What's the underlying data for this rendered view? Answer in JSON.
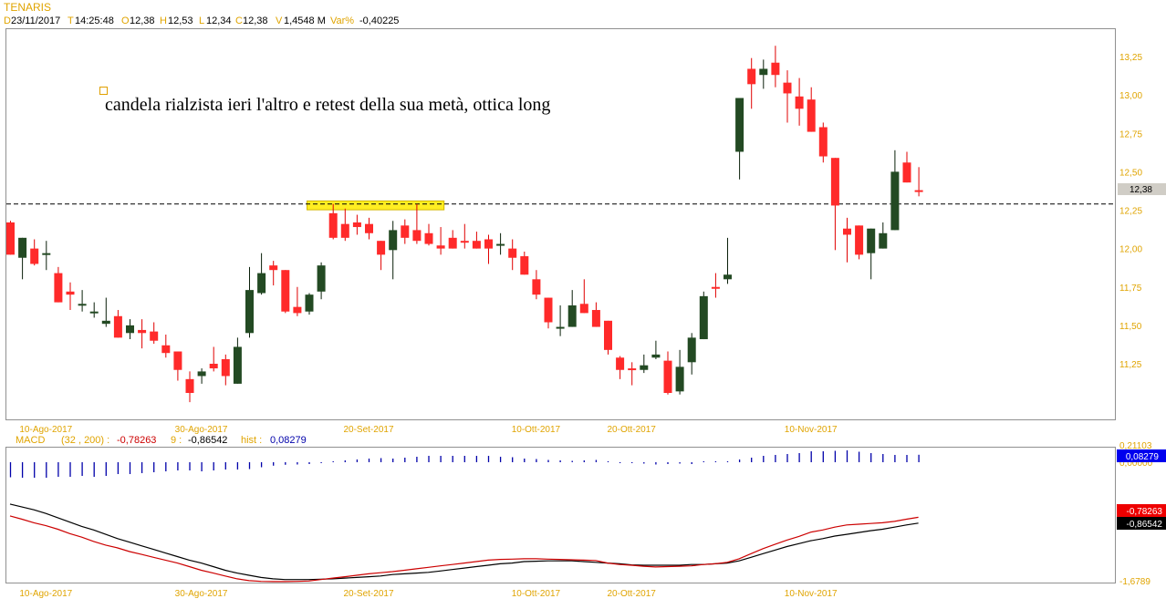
{
  "header": {
    "instrument": "TENARIS",
    "fields": [
      {
        "key": "D",
        "value": "23/11/2017"
      },
      {
        "key": "T",
        "value": "14:25:48"
      },
      {
        "key": "O",
        "value": "12,38"
      },
      {
        "key": "H",
        "value": "12,53"
      },
      {
        "key": "L",
        "value": "12,34"
      },
      {
        "key": "C",
        "value": "12,38"
      },
      {
        "key": "V",
        "value": "1,4548 M"
      },
      {
        "key": "Var%",
        "value": "-0,40225"
      }
    ]
  },
  "annotation": {
    "text": "candela rialzista ieri l'altro e retest della sua metà, ottica long"
  },
  "colors": {
    "up": "#234a23",
    "down": "#ff2a2a",
    "axis_label": "#e0a400",
    "highlight": "#ffee22",
    "macd": "#cc0000",
    "signal": "#000000",
    "hist": "#0000aa"
  },
  "chart_data": {
    "type": "candlestick",
    "title": "TENARIS",
    "price_axis": {
      "ticks": [
        {
          "value": 13.25,
          "label": "13,25"
        },
        {
          "value": 13.0,
          "label": "13,00"
        },
        {
          "value": 12.75,
          "label": "12,75"
        },
        {
          "value": 12.5,
          "label": "12,50"
        },
        {
          "value": 12.25,
          "label": "12,25"
        },
        {
          "value": 12.0,
          "label": "12,00"
        },
        {
          "value": 11.75,
          "label": "11,75"
        },
        {
          "value": 11.5,
          "label": "11,50"
        },
        {
          "value": 11.25,
          "label": "11,25"
        }
      ],
      "last_price_label": "12,38"
    },
    "x_labels": [
      {
        "label": "10-Ago-2017",
        "candle": 3
      },
      {
        "label": "30-Ago-2017",
        "candle": 16
      },
      {
        "label": "20-Set-2017",
        "candle": 30
      },
      {
        "label": "10-Ott-2017",
        "candle": 44
      },
      {
        "label": "20-Ott-2017",
        "candle": 52
      },
      {
        "label": "10-Nov-2017",
        "candle": 67
      }
    ],
    "reference_line": 12.29,
    "highlight_zone": {
      "from_candle": 25,
      "to_candle": 37,
      "price_low": 12.27,
      "price_high": 12.31
    },
    "candles_ohlc": [
      [
        12.17,
        12.18,
        11.96,
        11.96
      ],
      [
        11.94,
        12.07,
        11.8,
        12.07
      ],
      [
        12.0,
        12.06,
        11.89,
        11.9
      ],
      [
        11.96,
        12.05,
        11.86,
        11.97
      ],
      [
        11.84,
        11.88,
        11.65,
        11.65
      ],
      [
        11.72,
        11.78,
        11.6,
        11.7
      ],
      [
        11.63,
        11.73,
        11.59,
        11.64
      ],
      [
        11.58,
        11.65,
        11.55,
        11.59
      ],
      [
        11.51,
        11.68,
        11.49,
        11.53
      ],
      [
        11.56,
        11.6,
        11.42,
        11.42
      ],
      [
        11.45,
        11.54,
        11.41,
        11.5
      ],
      [
        11.47,
        11.54,
        11.35,
        11.45
      ],
      [
        11.46,
        11.52,
        11.38,
        11.4
      ],
      [
        11.37,
        11.44,
        11.29,
        11.32
      ],
      [
        11.33,
        11.33,
        11.14,
        11.21
      ],
      [
        11.15,
        11.2,
        11.0,
        11.06
      ],
      [
        11.17,
        11.22,
        11.12,
        11.2
      ],
      [
        11.25,
        11.36,
        11.2,
        11.22
      ],
      [
        11.28,
        11.31,
        11.11,
        11.17
      ],
      [
        11.12,
        11.42,
        11.12,
        11.36
      ],
      [
        11.45,
        11.88,
        11.42,
        11.73
      ],
      [
        11.71,
        11.97,
        11.7,
        11.84
      ],
      [
        11.89,
        11.92,
        11.76,
        11.86
      ],
      [
        11.86,
        11.86,
        11.58,
        11.59
      ],
      [
        11.62,
        11.75,
        11.56,
        11.58
      ],
      [
        11.59,
        11.71,
        11.57,
        11.7
      ],
      [
        11.72,
        11.91,
        11.67,
        11.89
      ],
      [
        12.23,
        12.29,
        12.06,
        12.07
      ],
      [
        12.16,
        12.26,
        12.05,
        12.07
      ],
      [
        12.17,
        12.22,
        12.09,
        12.14
      ],
      [
        12.16,
        12.2,
        12.06,
        12.1
      ],
      [
        12.05,
        12.05,
        11.86,
        11.96
      ],
      [
        11.99,
        12.18,
        11.8,
        12.12
      ],
      [
        12.15,
        12.19,
        12.03,
        12.07
      ],
      [
        12.12,
        12.29,
        12.03,
        12.05
      ],
      [
        12.1,
        12.16,
        12.02,
        12.03
      ],
      [
        12.02,
        12.14,
        11.96,
        12.0
      ],
      [
        12.07,
        12.12,
        12.0,
        12.0
      ],
      [
        12.05,
        12.16,
        12.0,
        12.04
      ],
      [
        12.05,
        12.11,
        12.0,
        12.0
      ],
      [
        12.06,
        12.09,
        11.9,
        12.0
      ],
      [
        12.02,
        12.1,
        11.96,
        12.03
      ],
      [
        12.0,
        12.06,
        11.86,
        11.94
      ],
      [
        11.95,
        11.98,
        11.83,
        11.83
      ],
      [
        11.8,
        11.86,
        11.67,
        11.7
      ],
      [
        11.68,
        11.68,
        11.48,
        11.52
      ],
      [
        11.48,
        11.63,
        11.43,
        11.49
      ],
      [
        11.49,
        11.73,
        11.49,
        11.63
      ],
      [
        11.64,
        11.8,
        11.58,
        11.58
      ],
      [
        11.6,
        11.65,
        11.49,
        11.49
      ],
      [
        11.53,
        11.53,
        11.31,
        11.34
      ],
      [
        11.29,
        11.3,
        11.15,
        11.21
      ],
      [
        11.22,
        11.26,
        11.11,
        11.21
      ],
      [
        11.21,
        11.31,
        11.19,
        11.24
      ],
      [
        11.29,
        11.4,
        11.28,
        11.31
      ],
      [
        11.27,
        11.33,
        11.05,
        11.06
      ],
      [
        11.07,
        11.34,
        11.05,
        11.23
      ],
      [
        11.26,
        11.45,
        11.18,
        11.42
      ],
      [
        11.41,
        11.72,
        11.41,
        11.69
      ],
      [
        11.75,
        11.84,
        11.68,
        11.74
      ],
      [
        11.8,
        12.07,
        11.77,
        11.83
      ],
      [
        12.63,
        12.98,
        12.45,
        12.98
      ],
      [
        13.17,
        13.24,
        12.91,
        13.07
      ],
      [
        13.13,
        13.23,
        13.04,
        13.17
      ],
      [
        13.21,
        13.32,
        13.05,
        13.13
      ],
      [
        13.08,
        13.16,
        12.82,
        13.01
      ],
      [
        12.99,
        13.11,
        12.8,
        12.91
      ],
      [
        12.97,
        13.05,
        12.76,
        12.76
      ],
      [
        12.79,
        12.82,
        12.56,
        12.6
      ],
      [
        12.59,
        12.59,
        11.99,
        12.28
      ],
      [
        12.13,
        12.2,
        11.91,
        12.09
      ],
      [
        12.15,
        12.15,
        11.93,
        11.96
      ],
      [
        11.97,
        12.13,
        11.8,
        12.13
      ],
      [
        12.0,
        12.17,
        12.0,
        12.1
      ],
      [
        12.12,
        12.64,
        12.12,
        12.5
      ],
      [
        12.56,
        12.63,
        12.43,
        12.43
      ],
      [
        12.38,
        12.53,
        12.34,
        12.38
      ]
    ],
    "macd_panel": {
      "name": "MACD",
      "params": "(32 , 200) :",
      "macd_value": "-0,78263",
      "signal_label": "9 :",
      "signal_value": "-0,86542",
      "hist_label": "hist :",
      "hist_value": "0,08279",
      "axis_top": "0,21103",
      "axis_zero": "0,00000",
      "axis_bottom": "-1,6789",
      "range": [
        -1.6789,
        0.21103
      ],
      "macd": [
        -0.765,
        -0.81,
        -0.86,
        -0.9,
        -0.95,
        -1.01,
        -1.06,
        -1.12,
        -1.17,
        -1.21,
        -1.26,
        -1.3,
        -1.34,
        -1.38,
        -1.42,
        -1.47,
        -1.52,
        -1.56,
        -1.6,
        -1.64,
        -1.665,
        -1.675,
        -1.678,
        -1.678,
        -1.675,
        -1.67,
        -1.65,
        -1.63,
        -1.61,
        -1.59,
        -1.57,
        -1.555,
        -1.54,
        -1.52,
        -1.5,
        -1.48,
        -1.46,
        -1.44,
        -1.42,
        -1.4,
        -1.38,
        -1.37,
        -1.365,
        -1.36,
        -1.36,
        -1.365,
        -1.37,
        -1.375,
        -1.38,
        -1.385,
        -1.42,
        -1.44,
        -1.45,
        -1.465,
        -1.475,
        -1.47,
        -1.465,
        -1.46,
        -1.44,
        -1.43,
        -1.41,
        -1.36,
        -1.29,
        -1.22,
        -1.16,
        -1.1,
        -1.05,
        -0.99,
        -0.96,
        -0.92,
        -0.89,
        -0.88,
        -0.87,
        -0.86,
        -0.84,
        -0.81,
        -0.783
      ],
      "signal": [
        -0.6,
        -0.64,
        -0.68,
        -0.73,
        -0.79,
        -0.85,
        -0.91,
        -0.96,
        -1.02,
        -1.08,
        -1.13,
        -1.18,
        -1.23,
        -1.28,
        -1.33,
        -1.38,
        -1.42,
        -1.47,
        -1.52,
        -1.56,
        -1.59,
        -1.62,
        -1.64,
        -1.65,
        -1.65,
        -1.65,
        -1.645,
        -1.64,
        -1.63,
        -1.62,
        -1.61,
        -1.6,
        -1.58,
        -1.57,
        -1.56,
        -1.55,
        -1.53,
        -1.51,
        -1.49,
        -1.47,
        -1.45,
        -1.43,
        -1.42,
        -1.4,
        -1.395,
        -1.39,
        -1.39,
        -1.39,
        -1.4,
        -1.41,
        -1.42,
        -1.43,
        -1.445,
        -1.45,
        -1.45,
        -1.45,
        -1.45,
        -1.44,
        -1.44,
        -1.43,
        -1.42,
        -1.39,
        -1.34,
        -1.29,
        -1.24,
        -1.19,
        -1.15,
        -1.11,
        -1.08,
        -1.045,
        -1.02,
        -0.995,
        -0.97,
        -0.95,
        -0.92,
        -0.89,
        -0.865
      ]
    }
  }
}
